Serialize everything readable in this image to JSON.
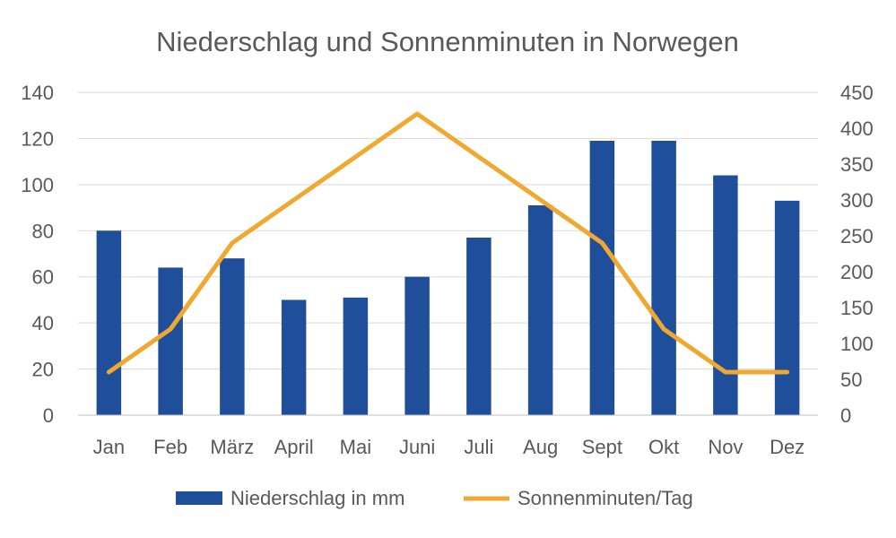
{
  "chart_data": {
    "type": "bar",
    "title": "Niederschlag und Sonnenminuten in Norwegen",
    "xlabel": "",
    "ylabel": "",
    "categories": [
      "Jan",
      "Feb",
      "März",
      "April",
      "Mai",
      "Juni",
      "Juli",
      "Aug",
      "Sept",
      "Okt",
      "Nov",
      "Dez"
    ],
    "ylim": [
      0,
      140
    ],
    "y_ticks": [
      0,
      20,
      40,
      60,
      80,
      100,
      120,
      140
    ],
    "y2lim": [
      0,
      450
    ],
    "y2_ticks": [
      0,
      50,
      100,
      150,
      200,
      250,
      300,
      350,
      400,
      450
    ],
    "grid": true,
    "legend_position": "bottom",
    "series": [
      {
        "name": "Niederschlag in mm",
        "type": "bar",
        "axis": "left",
        "color": "#1F4E9B",
        "values": [
          80,
          64,
          68,
          50,
          51,
          60,
          77,
          91,
          119,
          119,
          104,
          93
        ]
      },
      {
        "name": "Sonnenminuten/Tag",
        "type": "line",
        "axis": "right",
        "color": "#F0A830",
        "values": [
          60,
          120,
          240,
          300,
          360,
          420,
          360,
          300,
          240,
          120,
          60,
          60
        ]
      }
    ]
  }
}
